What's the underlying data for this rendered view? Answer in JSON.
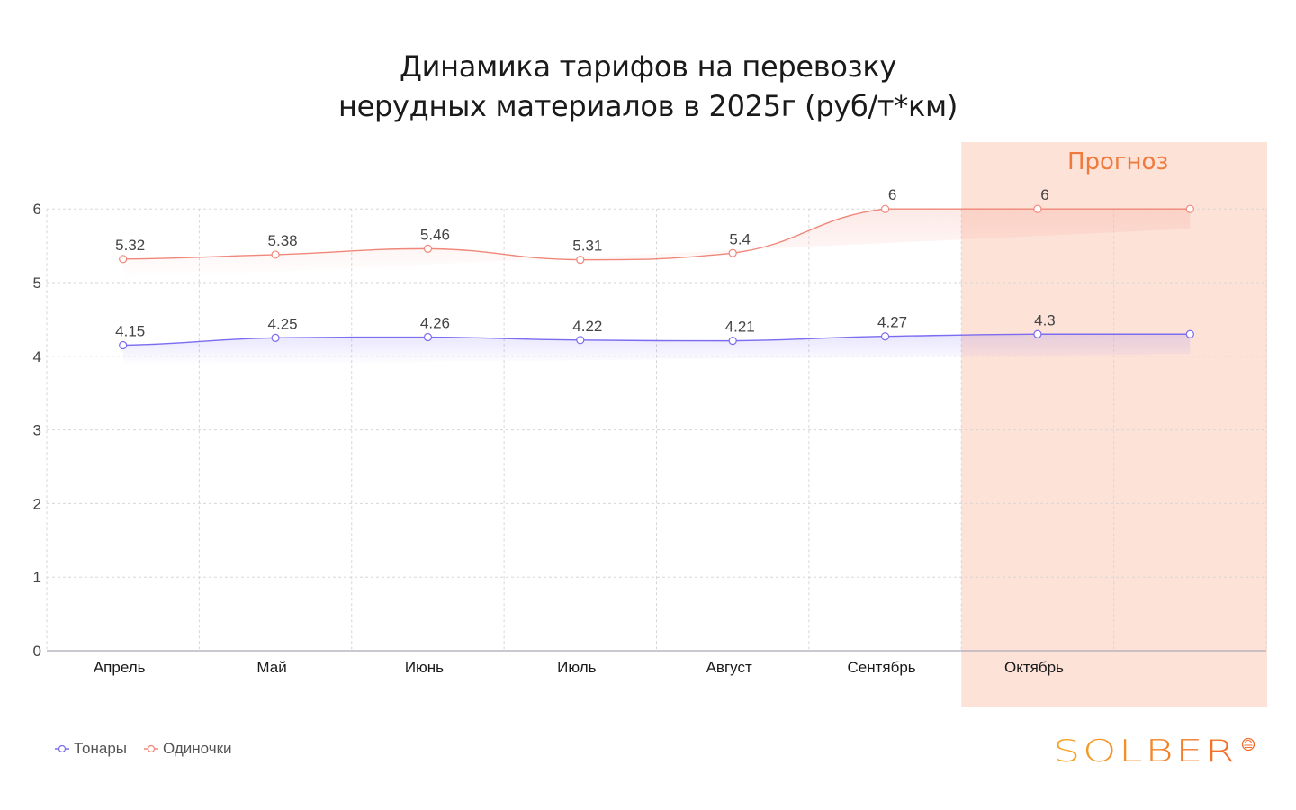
{
  "title": {
    "line1": "Динамика тарифов на перевозку",
    "line2": "нерудных материалов в 2025г (руб/т*км)"
  },
  "forecast_label": "Прогноз",
  "legend": [
    {
      "label": "Тонары",
      "color": "#7b6cf0"
    },
    {
      "label": "Одиночки",
      "color": "#f0877a"
    }
  ],
  "logo": {
    "text": "SOLBER"
  },
  "colors": {
    "tonary": "#7b6cf0",
    "odinochki": "#f0877a",
    "forecast_band": "#fde2d8",
    "forecast_text": "#f07a3e",
    "grid": "#d6d6d6",
    "axis_text": "#444444"
  },
  "chart_data": {
    "type": "line",
    "title": "Динамика тарифов на перевозку нерудных материалов в 2025г (руб/т*км)",
    "xlabel": "",
    "ylabel": "",
    "categories": [
      "Апрель",
      "Май",
      "Июнь",
      "Июль",
      "Август",
      "Сентябрь",
      "Октябрь",
      ""
    ],
    "series": [
      {
        "name": "Тонары",
        "values": [
          4.15,
          4.25,
          4.26,
          4.22,
          4.21,
          4.27,
          4.3,
          4.3
        ],
        "labels": [
          "4.15",
          "4.25",
          "4.26",
          "4.22",
          "4.21",
          "4.27",
          "4.3",
          ""
        ]
      },
      {
        "name": "Одиночки",
        "values": [
          5.32,
          5.38,
          5.46,
          5.31,
          5.4,
          6,
          6,
          6
        ],
        "labels": [
          "5.32",
          "5.38",
          "5.46",
          "5.31",
          "5.4",
          "6",
          "6",
          ""
        ]
      }
    ],
    "yticks": [
      0,
      1,
      2,
      3,
      4,
      5,
      6
    ],
    "ylim": [
      0,
      6.3
    ],
    "grid": true,
    "legend_position": "bottom-left",
    "annotations": [
      {
        "text": "Прогноз",
        "region": "Октябрь onward (shaded)"
      }
    ]
  }
}
